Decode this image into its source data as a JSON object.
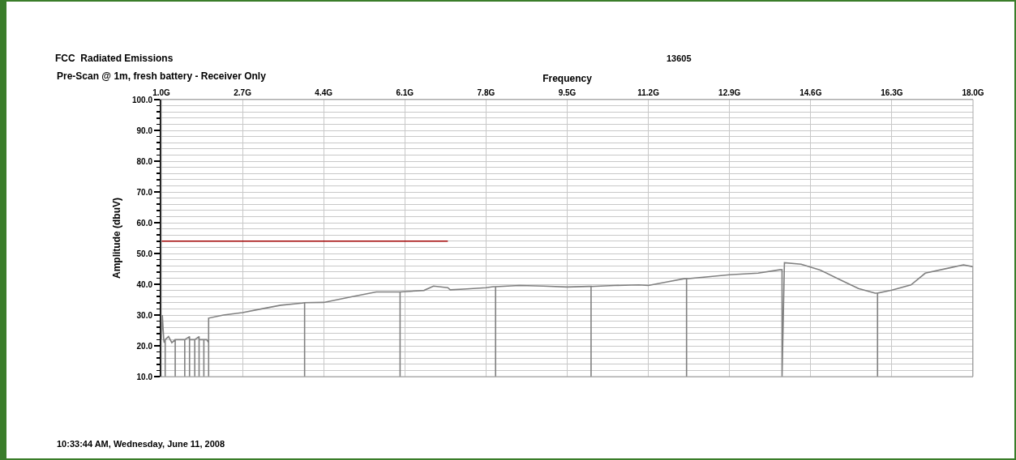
{
  "chart_data": {
    "type": "line",
    "title": "FCC  Radiated Emissions",
    "subtitle": "Pre-Scan @ 1m, fresh battery - Receiver Only",
    "xlabel": "Frequency",
    "ylabel": "Amplitude (dbuV)",
    "annotations": [
      "13605",
      "10:33:44 AM, Wednesday, June 11, 2008"
    ],
    "series": [
      {
        "color": "#808080",
        "x": [
          1.0,
          1.02,
          1.05,
          1.06,
          1.08,
          1.08,
          1.08,
          1.15,
          1.22,
          1.29,
          1.29,
          1.29,
          1.38,
          1.49,
          1.49,
          1.49,
          1.59,
          1.59,
          1.59,
          1.7,
          1.7,
          1.7,
          1.79,
          1.79,
          1.79,
          1.89,
          1.89,
          1.89,
          1.95,
          1.99,
          1.99,
          1.99,
          2.3,
          2.7,
          3.1,
          3.5,
          3.95,
          4.0,
          4.0,
          4.0,
          4.4,
          5.0,
          5.5,
          5.95,
          6.0,
          6.0,
          6.0,
          6.5,
          6.7,
          7.0,
          7.05,
          7.4,
          7.8,
          7.95,
          8.0,
          8.0,
          8.0,
          8.5,
          9.0,
          9.5,
          9.95,
          10.0,
          10.0,
          10.0,
          10.5,
          11.0,
          11.2,
          11.6,
          11.95,
          12.0,
          12.0,
          12.0,
          12.5,
          12.9,
          13.5,
          13.95,
          14.0,
          14.0,
          14.05,
          14.4,
          14.8,
          15.2,
          15.6,
          15.95,
          16.0,
          16.0,
          16.0,
          16.3,
          16.7,
          17.0,
          17.5,
          17.8,
          18.0,
          18.0
        ],
        "values": [
          22,
          30,
          22,
          21,
          22,
          10,
          22,
          23,
          21,
          22,
          10,
          22,
          22,
          22,
          10,
          22,
          23,
          10,
          22,
          22,
          10,
          22,
          23,
          10,
          22,
          22,
          10,
          22,
          22,
          21,
          10,
          29,
          30,
          30.8,
          32,
          33.2,
          33.9,
          34,
          10,
          34,
          34.1,
          36,
          37.5,
          37.5,
          37.5,
          10,
          37.5,
          38,
          39.4,
          38.9,
          38.2,
          38.5,
          38.9,
          39.2,
          39.2,
          10,
          39.2,
          39.6,
          39.4,
          39.1,
          39.3,
          39.3,
          10,
          39.3,
          39.6,
          39.8,
          39.6,
          40.8,
          41.8,
          41.8,
          10,
          41.8,
          42.5,
          43.1,
          43.6,
          44.7,
          44.7,
          10,
          47,
          46.5,
          44.6,
          41.6,
          38.6,
          37.1,
          37.1,
          10,
          37.1,
          38.1,
          39.8,
          43.6,
          45.3,
          46.3,
          45.7,
          10
        ]
      },
      {
        "color": "#a00000",
        "x": [
          1.0,
          7.0
        ],
        "values": [
          54,
          54
        ]
      }
    ],
    "xlim": [
      1.0,
      18.0
    ],
    "xticks": [
      {
        "value": 1.0,
        "label": "1.0G"
      },
      {
        "value": 2.7,
        "label": "2.7G"
      },
      {
        "value": 4.4,
        "label": "4.4G"
      },
      {
        "value": 6.1,
        "label": "6.1G"
      },
      {
        "value": 7.8,
        "label": "7.8G"
      },
      {
        "value": 9.5,
        "label": "9.5G"
      },
      {
        "value": 11.2,
        "label": "11.2G"
      },
      {
        "value": 12.9,
        "label": "12.9G"
      },
      {
        "value": 14.6,
        "label": "14.6G"
      },
      {
        "value": 16.3,
        "label": "16.3G"
      },
      {
        "value": 18.0,
        "label": "18.0G"
      }
    ],
    "ylim": [
      10,
      100
    ],
    "yticks": [
      {
        "value": 10,
        "label": "10.0"
      },
      {
        "value": 12,
        "label": null
      },
      {
        "value": 14,
        "label": null
      },
      {
        "value": 16,
        "label": null
      },
      {
        "value": 18,
        "label": null
      },
      {
        "value": 20,
        "label": "20.0"
      },
      {
        "value": 22,
        "label": null
      },
      {
        "value": 24,
        "label": null
      },
      {
        "value": 26,
        "label": null
      },
      {
        "value": 28,
        "label": null
      },
      {
        "value": 30,
        "label": "30.0"
      },
      {
        "value": 32,
        "label": null
      },
      {
        "value": 34,
        "label": null
      },
      {
        "value": 36,
        "label": null
      },
      {
        "value": 38,
        "label": null
      },
      {
        "value": 40,
        "label": "40.0"
      },
      {
        "value": 42,
        "label": null
      },
      {
        "value": 44,
        "label": null
      },
      {
        "value": 46,
        "label": null
      },
      {
        "value": 48,
        "label": null
      },
      {
        "value": 50,
        "label": "50.0"
      },
      {
        "value": 52,
        "label": null
      },
      {
        "value": 54,
        "label": null
      },
      {
        "value": 56,
        "label": null
      },
      {
        "value": 58,
        "label": null
      },
      {
        "value": 60,
        "label": "60.0"
      },
      {
        "value": 62,
        "label": null
      },
      {
        "value": 64,
        "label": null
      },
      {
        "value": 66,
        "label": null
      },
      {
        "value": 68,
        "label": null
      },
      {
        "value": 70,
        "label": "70.0"
      },
      {
        "value": 72,
        "label": null
      },
      {
        "value": 74,
        "label": null
      },
      {
        "value": 76,
        "label": null
      },
      {
        "value": 78,
        "label": null
      },
      {
        "value": 80,
        "label": "80.0"
      },
      {
        "value": 82,
        "label": null
      },
      {
        "value": 84,
        "label": null
      },
      {
        "value": 86,
        "label": null
      },
      {
        "value": 88,
        "label": null
      },
      {
        "value": 90,
        "label": "90.0"
      },
      {
        "value": 92,
        "label": null
      },
      {
        "value": 94,
        "label": null
      },
      {
        "value": 96,
        "label": null
      },
      {
        "value": 98,
        "label": null
      },
      {
        "value": 100,
        "label": "100.0"
      }
    ],
    "grid": true,
    "marker": "none",
    "line_style": "solid"
  }
}
